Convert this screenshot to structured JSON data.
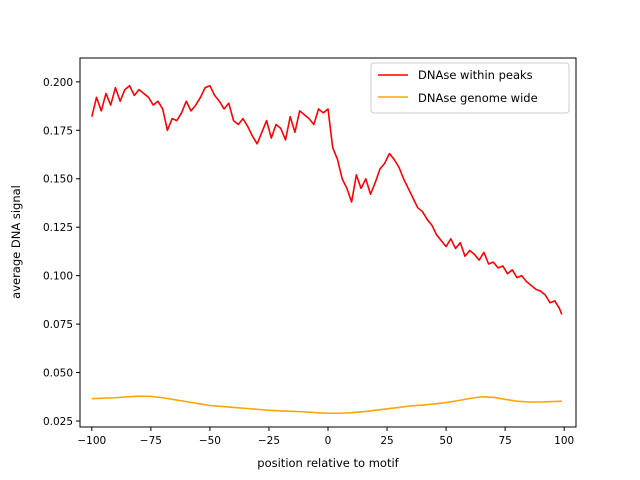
{
  "chart_data": {
    "type": "line",
    "xlabel": "position relative to motif",
    "ylabel": "average DNA signal",
    "xlim": [
      -105,
      105
    ],
    "ylim": [
      0.0219,
      0.2123
    ],
    "xticks": [
      -100,
      -75,
      -50,
      -25,
      0,
      25,
      50,
      75,
      100
    ],
    "yticks": [
      0.025,
      0.05,
      0.075,
      0.1,
      0.125,
      0.15,
      0.175,
      0.2
    ],
    "grid": false,
    "legend_position": "top-right",
    "series": [
      {
        "name": "DNAse within peaks",
        "color": "#ff0000",
        "x": [
          -100,
          -98,
          -96,
          -94,
          -92,
          -90,
          -88,
          -86,
          -84,
          -82,
          -80,
          -78,
          -76,
          -74,
          -72,
          -70,
          -68,
          -66,
          -64,
          -62,
          -60,
          -58,
          -56,
          -54,
          -52,
          -50,
          -48,
          -46,
          -44,
          -42,
          -40,
          -38,
          -36,
          -34,
          -32,
          -30,
          -28,
          -26,
          -24,
          -22,
          -20,
          -18,
          -16,
          -14,
          -12,
          -10,
          -8,
          -6,
          -4,
          -2,
          0,
          2,
          4,
          6,
          8,
          10,
          12,
          14,
          16,
          18,
          20,
          22,
          24,
          26,
          28,
          30,
          32,
          34,
          36,
          38,
          40,
          42,
          44,
          46,
          48,
          50,
          52,
          54,
          56,
          58,
          60,
          62,
          64,
          66,
          68,
          70,
          72,
          74,
          76,
          78,
          80,
          82,
          84,
          86,
          88,
          90,
          92,
          94,
          96,
          98,
          99
        ],
        "y": [
          0.182,
          0.192,
          0.185,
          0.194,
          0.188,
          0.197,
          0.19,
          0.196,
          0.198,
          0.193,
          0.196,
          0.194,
          0.192,
          0.188,
          0.19,
          0.186,
          0.175,
          0.181,
          0.18,
          0.184,
          0.19,
          0.185,
          0.188,
          0.192,
          0.197,
          0.198,
          0.193,
          0.19,
          0.186,
          0.189,
          0.18,
          0.178,
          0.181,
          0.177,
          0.172,
          0.168,
          0.174,
          0.18,
          0.171,
          0.178,
          0.176,
          0.17,
          0.182,
          0.174,
          0.185,
          0.183,
          0.181,
          0.178,
          0.186,
          0.184,
          0.186,
          0.166,
          0.16,
          0.15,
          0.145,
          0.138,
          0.152,
          0.145,
          0.15,
          0.142,
          0.148,
          0.155,
          0.158,
          0.163,
          0.16,
          0.156,
          0.15,
          0.145,
          0.14,
          0.135,
          0.133,
          0.129,
          0.126,
          0.121,
          0.118,
          0.115,
          0.119,
          0.114,
          0.117,
          0.11,
          0.113,
          0.111,
          0.108,
          0.112,
          0.106,
          0.107,
          0.104,
          0.105,
          0.101,
          0.103,
          0.099,
          0.1,
          0.097,
          0.095,
          0.093,
          0.092,
          0.09,
          0.086,
          0.087,
          0.083,
          0.08
        ]
      },
      {
        "name": "DNAse genome wide",
        "color": "#ffa500",
        "x": [
          -100,
          -95,
          -90,
          -85,
          -80,
          -75,
          -70,
          -65,
          -60,
          -55,
          -50,
          -45,
          -40,
          -35,
          -30,
          -25,
          -20,
          -15,
          -10,
          -5,
          0,
          5,
          10,
          15,
          20,
          25,
          30,
          35,
          40,
          45,
          50,
          55,
          60,
          65,
          70,
          75,
          80,
          85,
          90,
          95,
          99
        ],
        "y": [
          0.0365,
          0.0368,
          0.037,
          0.0375,
          0.0378,
          0.0377,
          0.037,
          0.036,
          0.035,
          0.034,
          0.033,
          0.0325,
          0.032,
          0.0315,
          0.031,
          0.0305,
          0.0302,
          0.03,
          0.0297,
          0.0293,
          0.029,
          0.029,
          0.0293,
          0.0298,
          0.0305,
          0.0313,
          0.032,
          0.0328,
          0.0332,
          0.0338,
          0.0345,
          0.0355,
          0.0366,
          0.0375,
          0.0372,
          0.0362,
          0.0352,
          0.0348,
          0.0348,
          0.035,
          0.0352
        ]
      }
    ]
  }
}
